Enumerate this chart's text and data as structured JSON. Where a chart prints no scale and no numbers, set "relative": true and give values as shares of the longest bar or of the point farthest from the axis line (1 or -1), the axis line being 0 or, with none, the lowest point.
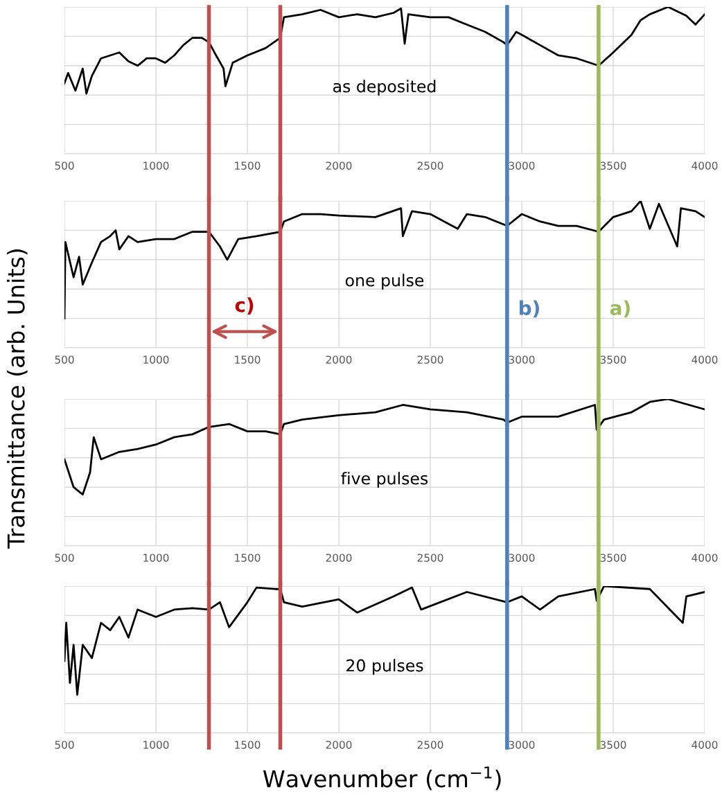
{
  "chart_data": [
    {
      "type": "line",
      "relative": true,
      "ylabel": "Transmittance (arb. Units)",
      "annotations": [
        "as deposited"
      ],
      "xlim": [
        500,
        4000
      ],
      "xticks": [
        500,
        1000,
        1500,
        2000,
        2500,
        3000,
        3500,
        4000
      ],
      "grid": true,
      "series": [
        {
          "color": "#000000",
          "x": [
            500,
            520,
            560,
            600,
            620,
            650,
            700,
            750,
            800,
            850,
            900,
            950,
            1000,
            1050,
            1100,
            1150,
            1200,
            1250,
            1290,
            1320,
            1370,
            1380,
            1420,
            1500,
            1600,
            1680,
            1700,
            1800,
            1900,
            2000,
            2100,
            2200,
            2300,
            2340,
            2360,
            2380,
            2500,
            2600,
            2700,
            2800,
            2900,
            2920,
            2970,
            3000,
            3100,
            3200,
            3300,
            3420,
            3500,
            3600,
            3650,
            3700,
            3800,
            3900,
            3950,
            4000
          ],
          "values": [
            0.48,
            0.55,
            0.43,
            0.58,
            0.41,
            0.53,
            0.65,
            0.67,
            0.69,
            0.63,
            0.6,
            0.65,
            0.65,
            0.62,
            0.67,
            0.74,
            0.79,
            0.79,
            0.76,
            0.69,
            0.58,
            0.46,
            0.62,
            0.67,
            0.72,
            0.79,
            0.93,
            0.95,
            0.98,
            0.93,
            0.95,
            0.93,
            0.96,
            0.99,
            0.75,
            0.95,
            0.93,
            0.93,
            0.88,
            0.83,
            0.76,
            0.74,
            0.83,
            0.81,
            0.74,
            0.67,
            0.65,
            0.6,
            0.69,
            0.81,
            0.91,
            0.95,
            1.0,
            0.94,
            0.88,
            0.95
          ]
        }
      ],
      "ref_lines": [
        {
          "axis": "x",
          "value": 1290,
          "color": "#c0504d"
        },
        {
          "axis": "x",
          "value": 1680,
          "color": "#c0504d"
        },
        {
          "axis": "x",
          "value": 2920,
          "color": "#4f81bd"
        },
        {
          "axis": "x",
          "value": 3420,
          "color": "#9bbb59"
        }
      ]
    },
    {
      "type": "line",
      "relative": true,
      "annotations": [
        "one pulse",
        "c)"
      ],
      "xlim": [
        500,
        4000
      ],
      "xticks": [
        500,
        1000,
        1500,
        2000,
        2500,
        3000,
        3500,
        4000
      ],
      "grid": true,
      "series": [
        {
          "color": "#000000",
          "x": [
            500,
            505,
            550,
            580,
            600,
            650,
            700,
            750,
            780,
            800,
            850,
            900,
            1000,
            1100,
            1200,
            1290,
            1350,
            1390,
            1450,
            1550,
            1680,
            1700,
            1800,
            1900,
            2000,
            2200,
            2340,
            2350,
            2400,
            2500,
            2650,
            2700,
            2800,
            2920,
            3000,
            3100,
            3200,
            3300,
            3420,
            3500,
            3600,
            3650,
            3700,
            3750,
            3850,
            3870,
            3950,
            4000
          ],
          "values": [
            0.2,
            0.72,
            0.48,
            0.62,
            0.43,
            0.58,
            0.72,
            0.76,
            0.8,
            0.67,
            0.76,
            0.72,
            0.74,
            0.74,
            0.79,
            0.79,
            0.69,
            0.6,
            0.74,
            0.76,
            0.79,
            0.86,
            0.91,
            0.91,
            0.9,
            0.89,
            0.95,
            0.76,
            0.93,
            0.91,
            0.81,
            0.91,
            0.89,
            0.83,
            0.91,
            0.86,
            0.83,
            0.83,
            0.79,
            0.89,
            0.93,
            1.0,
            0.81,
            0.98,
            0.69,
            0.95,
            0.93,
            0.89
          ]
        }
      ],
      "ref_lines": [
        {
          "axis": "x",
          "value": 1290,
          "color": "#c0504d"
        },
        {
          "axis": "x",
          "value": 1680,
          "color": "#c0504d"
        },
        {
          "axis": "x",
          "value": 2920,
          "color": "#4f81bd",
          "label": "b)"
        },
        {
          "axis": "x",
          "value": 3420,
          "color": "#9bbb59",
          "label": "a)"
        }
      ]
    },
    {
      "type": "line",
      "relative": true,
      "annotations": [
        "five pulses"
      ],
      "xlim": [
        500,
        4000
      ],
      "xticks": [
        500,
        1000,
        1500,
        2000,
        2500,
        3000,
        3500,
        4000
      ],
      "grid": true,
      "series": [
        {
          "color": "#000000",
          "x": [
            500,
            550,
            600,
            640,
            660,
            700,
            800,
            900,
            1000,
            1100,
            1200,
            1290,
            1400,
            1500,
            1600,
            1680,
            1700,
            1800,
            2000,
            2200,
            2350,
            2500,
            2700,
            2900,
            2920,
            3000,
            3200,
            3400,
            3410,
            3450,
            3600,
            3700,
            3800,
            4000
          ],
          "values": [
            0.59,
            0.4,
            0.35,
            0.5,
            0.74,
            0.59,
            0.64,
            0.66,
            0.69,
            0.74,
            0.76,
            0.81,
            0.83,
            0.78,
            0.78,
            0.76,
            0.83,
            0.86,
            0.89,
            0.91,
            0.96,
            0.93,
            0.91,
            0.86,
            0.84,
            0.88,
            0.88,
            0.96,
            0.79,
            0.86,
            0.91,
            0.98,
            1.0,
            0.93
          ]
        }
      ],
      "ref_lines": [
        {
          "axis": "x",
          "value": 1290,
          "color": "#c0504d"
        },
        {
          "axis": "x",
          "value": 1680,
          "color": "#c0504d"
        },
        {
          "axis": "x",
          "value": 2920,
          "color": "#4f81bd"
        },
        {
          "axis": "x",
          "value": 3420,
          "color": "#9bbb59"
        }
      ]
    },
    {
      "type": "line",
      "relative": true,
      "xlabel": "Wavenumber (cm$^{−1}$)",
      "annotations": [
        "20 pulses"
      ],
      "xlim": [
        500,
        4000
      ],
      "xticks": [
        500,
        1000,
        1500,
        2000,
        2500,
        3000,
        3500,
        4000
      ],
      "grid": true,
      "series": [
        {
          "color": "#000000",
          "x": [
            500,
            510,
            530,
            550,
            570,
            600,
            650,
            700,
            750,
            800,
            850,
            900,
            1000,
            1100,
            1200,
            1290,
            1350,
            1400,
            1500,
            1550,
            1650,
            1680,
            1700,
            1800,
            2000,
            2100,
            2300,
            2400,
            2450,
            2700,
            2920,
            3000,
            3100,
            3200,
            3400,
            3410,
            3450,
            3700,
            3880,
            3900,
            4000
          ],
          "values": [
            0.49,
            0.75,
            0.34,
            0.6,
            0.26,
            0.6,
            0.51,
            0.75,
            0.7,
            0.79,
            0.65,
            0.84,
            0.79,
            0.84,
            0.85,
            0.84,
            0.89,
            0.72,
            0.89,
            0.99,
            0.98,
            0.98,
            0.89,
            0.86,
            0.91,
            0.82,
            0.93,
            0.99,
            0.84,
            0.96,
            0.89,
            0.93,
            0.84,
            0.93,
            0.98,
            0.9,
            1.0,
            0.98,
            0.75,
            0.93,
            0.96
          ]
        }
      ],
      "ref_lines": [
        {
          "axis": "x",
          "value": 1290,
          "color": "#c0504d"
        },
        {
          "axis": "x",
          "value": 1680,
          "color": "#c0504d"
        },
        {
          "axis": "x",
          "value": 2920,
          "color": "#4f81bd"
        },
        {
          "axis": "x",
          "value": 3420,
          "color": "#9bbb59"
        }
      ]
    }
  ]
}
